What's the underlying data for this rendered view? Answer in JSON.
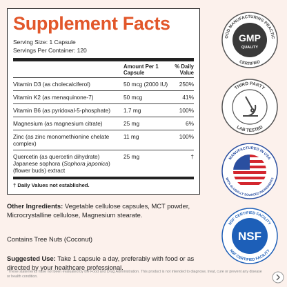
{
  "label": {
    "title": "Supplement Facts",
    "serving_size": "Serving Size: 1 Capsule",
    "servings_per_container": "Servings Per Container: 120",
    "header": {
      "amount": "Amount Per 1 Capsule",
      "daily_value": "% Daily Value"
    },
    "rows": [
      {
        "name": "Vitamin D3 (as cholecalciferol)",
        "amount": "50 mcg (2000 IU)",
        "daily_value": "250%"
      },
      {
        "name": "Vitamin K2 (as menaquinone-7)",
        "amount": "50 mcg",
        "daily_value": "41%"
      },
      {
        "name": "Vitamin B6 (as pyridoxal-5-phosphate)",
        "amount": "1.7 mg",
        "daily_value": "100%"
      },
      {
        "name": "Magnesium (as magnesium citrate)",
        "amount": "25 mg",
        "daily_value": "6%"
      },
      {
        "name": "Zinc (as zinc monomethionine chelate complex)",
        "amount": "11 mg",
        "daily_value": "100%"
      },
      {
        "name": "Quercetin (as quercetin dihydrate) Japanese sophora (",
        "name_italic": "Sophora japonica",
        "name_end": ") (flower buds) extract",
        "amount": "25 mg",
        "daily_value": "†"
      }
    ],
    "footnote": "† Daily Values not established."
  },
  "other_ingredients": {
    "label": "Other Ingredients:",
    "text": "Vegetable cellulose capsules, MCT powder, Microcrystalline cellulose, Magnesium stearate."
  },
  "allergen": "Contains Tree Nuts (Coconut)",
  "suggested_use": {
    "label": "Suggested Use:",
    "text": "Take 1 capsule a day, preferably with food or as directed by your healthcare professional."
  },
  "disclaimer": "*These statements have not been evaluated by the Food and Drug Administration. This product is not intended to diagnose, treat, cure or prevent any disease or health condition.",
  "badges": [
    {
      "top": "GOOD MANUFACTURING PRACTICE",
      "main": "GMP",
      "sub": "QUALITY",
      "bottom": "CERTIFIED"
    },
    {
      "top": "THIRD PARTY",
      "bottom": "LAB TESTED"
    },
    {
      "top": "MANUFACTURED IN USA",
      "bottom": "WITH GLOBALLY SOURCED INGREDIENTS"
    },
    {
      "top": "NSF CERTIFIED FACILITY",
      "main": "NSF",
      "bottom": "NSF CERTIFIED FACILITY"
    }
  ]
}
